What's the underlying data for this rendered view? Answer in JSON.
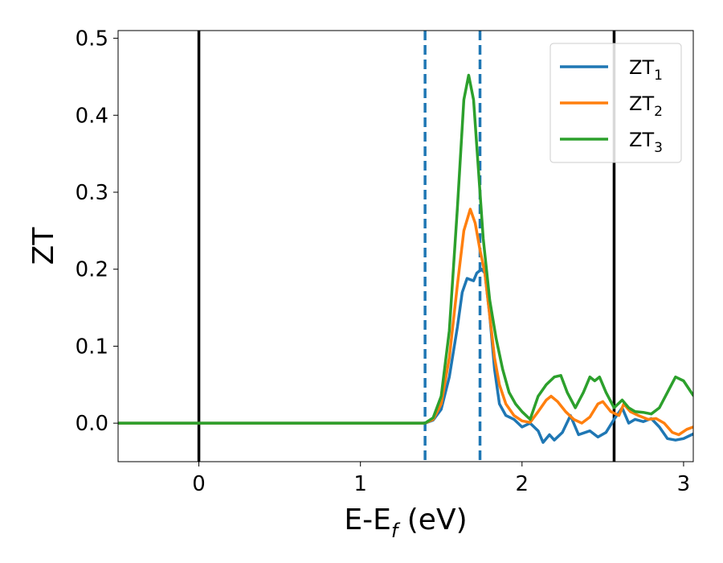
{
  "chart_data": {
    "type": "line",
    "title": "",
    "xlabel": "E-E",
    "xlabel_sub": "f",
    "xlabel_unit": " (eV)",
    "ylabel": "ZT",
    "xlim": [
      -0.5,
      3.06
    ],
    "ylim": [
      -0.05,
      0.51
    ],
    "xticks": [
      0,
      1,
      2,
      3
    ],
    "xtick_labels": [
      "0",
      "1",
      "2",
      "3"
    ],
    "yticks": [
      0.0,
      0.1,
      0.2,
      0.3,
      0.4,
      0.5
    ],
    "ytick_labels": [
      "0.0",
      "0.1",
      "0.2",
      "0.3",
      "0.4",
      "0.5"
    ],
    "grid": false,
    "legend_position": "top-right",
    "vertical_lines": [
      {
        "x": 0.0,
        "style": "solid",
        "color": "#000000"
      },
      {
        "x": 1.4,
        "style": "dashed",
        "color": "#1f77b4"
      },
      {
        "x": 1.74,
        "style": "dashed",
        "color": "#1f77b4"
      },
      {
        "x": 2.57,
        "style": "solid",
        "color": "#000000"
      }
    ],
    "series": [
      {
        "name": "ZT",
        "name_sub": "1",
        "color": "#1f77b4",
        "points": [
          [
            -0.5,
            0
          ],
          [
            1.4,
            0
          ],
          [
            1.45,
            0.004
          ],
          [
            1.5,
            0.018
          ],
          [
            1.55,
            0.06
          ],
          [
            1.6,
            0.125
          ],
          [
            1.63,
            0.17
          ],
          [
            1.66,
            0.188
          ],
          [
            1.7,
            0.185
          ],
          [
            1.72,
            0.195
          ],
          [
            1.75,
            0.2
          ],
          [
            1.77,
            0.195
          ],
          [
            1.8,
            0.14
          ],
          [
            1.83,
            0.07
          ],
          [
            1.86,
            0.025
          ],
          [
            1.9,
            0.01
          ],
          [
            1.95,
            0.005
          ],
          [
            2.0,
            -0.005
          ],
          [
            2.05,
            0.0
          ],
          [
            2.1,
            -0.01
          ],
          [
            2.13,
            -0.025
          ],
          [
            2.17,
            -0.015
          ],
          [
            2.2,
            -0.022
          ],
          [
            2.25,
            -0.012
          ],
          [
            2.3,
            0.01
          ],
          [
            2.35,
            -0.015
          ],
          [
            2.42,
            -0.01
          ],
          [
            2.47,
            -0.018
          ],
          [
            2.52,
            -0.012
          ],
          [
            2.57,
            0.005
          ],
          [
            2.62,
            0.02
          ],
          [
            2.66,
            0.0
          ],
          [
            2.7,
            0.005
          ],
          [
            2.75,
            0.002
          ],
          [
            2.8,
            0.006
          ],
          [
            2.85,
            -0.005
          ],
          [
            2.9,
            -0.02
          ],
          [
            2.95,
            -0.022
          ],
          [
            3.0,
            -0.02
          ],
          [
            3.06,
            -0.014
          ]
        ]
      },
      {
        "name": "ZT",
        "name_sub": "2",
        "color": "#ff7f0e",
        "points": [
          [
            -0.5,
            0
          ],
          [
            1.4,
            0
          ],
          [
            1.45,
            0.005
          ],
          [
            1.5,
            0.025
          ],
          [
            1.55,
            0.085
          ],
          [
            1.6,
            0.18
          ],
          [
            1.64,
            0.25
          ],
          [
            1.68,
            0.278
          ],
          [
            1.71,
            0.26
          ],
          [
            1.74,
            0.225
          ],
          [
            1.77,
            0.195
          ],
          [
            1.8,
            0.14
          ],
          [
            1.83,
            0.085
          ],
          [
            1.86,
            0.05
          ],
          [
            1.9,
            0.025
          ],
          [
            1.95,
            0.01
          ],
          [
            2.0,
            0.003
          ],
          [
            2.05,
            0.001
          ],
          [
            2.1,
            0.015
          ],
          [
            2.15,
            0.03
          ],
          [
            2.18,
            0.035
          ],
          [
            2.22,
            0.028
          ],
          [
            2.27,
            0.015
          ],
          [
            2.32,
            0.005
          ],
          [
            2.37,
            0.0
          ],
          [
            2.42,
            0.008
          ],
          [
            2.47,
            0.025
          ],
          [
            2.5,
            0.028
          ],
          [
            2.55,
            0.015
          ],
          [
            2.6,
            0.01
          ],
          [
            2.63,
            0.025
          ],
          [
            2.67,
            0.015
          ],
          [
            2.72,
            0.01
          ],
          [
            2.78,
            0.005
          ],
          [
            2.83,
            0.006
          ],
          [
            2.88,
            0.0
          ],
          [
            2.93,
            -0.012
          ],
          [
            2.97,
            -0.015
          ],
          [
            3.02,
            -0.008
          ],
          [
            3.06,
            -0.005
          ]
        ]
      },
      {
        "name": "ZT",
        "name_sub": "3",
        "color": "#2ca02c",
        "points": [
          [
            -0.5,
            0
          ],
          [
            1.4,
            0
          ],
          [
            1.45,
            0.007
          ],
          [
            1.5,
            0.035
          ],
          [
            1.55,
            0.12
          ],
          [
            1.6,
            0.28
          ],
          [
            1.64,
            0.42
          ],
          [
            1.67,
            0.452
          ],
          [
            1.7,
            0.42
          ],
          [
            1.73,
            0.33
          ],
          [
            1.76,
            0.24
          ],
          [
            1.8,
            0.16
          ],
          [
            1.84,
            0.11
          ],
          [
            1.88,
            0.07
          ],
          [
            1.92,
            0.04
          ],
          [
            1.96,
            0.025
          ],
          [
            2.0,
            0.015
          ],
          [
            2.05,
            0.005
          ],
          [
            2.1,
            0.035
          ],
          [
            2.15,
            0.05
          ],
          [
            2.2,
            0.06
          ],
          [
            2.24,
            0.062
          ],
          [
            2.28,
            0.04
          ],
          [
            2.33,
            0.02
          ],
          [
            2.38,
            0.04
          ],
          [
            2.42,
            0.06
          ],
          [
            2.45,
            0.055
          ],
          [
            2.48,
            0.06
          ],
          [
            2.52,
            0.04
          ],
          [
            2.57,
            0.02
          ],
          [
            2.62,
            0.03
          ],
          [
            2.66,
            0.02
          ],
          [
            2.7,
            0.015
          ],
          [
            2.75,
            0.014
          ],
          [
            2.8,
            0.012
          ],
          [
            2.85,
            0.02
          ],
          [
            2.9,
            0.04
          ],
          [
            2.95,
            0.06
          ],
          [
            3.0,
            0.055
          ],
          [
            3.06,
            0.036
          ]
        ]
      }
    ]
  }
}
